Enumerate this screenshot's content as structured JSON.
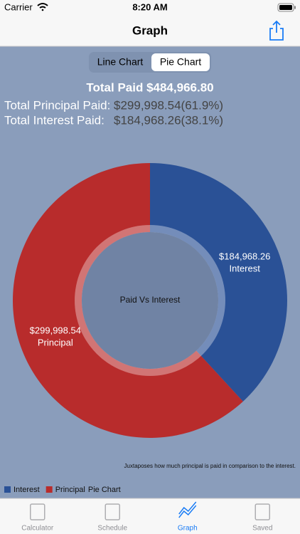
{
  "status_bar": {
    "carrier": "Carrier",
    "time": "8:20 AM"
  },
  "nav": {
    "title": "Graph"
  },
  "segments": {
    "items": [
      "Line Chart",
      "Pie Chart"
    ],
    "selected": 1
  },
  "summary": {
    "total": "Total Paid $484,966.80",
    "rows": [
      {
        "label": "Total Principal Paid:",
        "value": "$299,998.54(61.9%)"
      },
      {
        "label": "Total Interest Paid:",
        "value": "$184,968.26(38.1%)"
      }
    ]
  },
  "chart_data": {
    "type": "pie",
    "center_text": "Paid Vs Interest",
    "description": "Juxtaposes how much principal is paid in comparison to the interest.",
    "categories": [
      "Interest",
      "Principal"
    ],
    "values": [
      184968.26,
      299998.54
    ],
    "value_labels": [
      "$184,968.26",
      "$299,998.54"
    ],
    "colors": [
      "#2a5196",
      "#b82c2c"
    ],
    "legend_title": "Pie Chart"
  },
  "tabs": {
    "items": [
      "Calculator",
      "Schedule",
      "Graph",
      "Saved"
    ],
    "selected": 2
  }
}
